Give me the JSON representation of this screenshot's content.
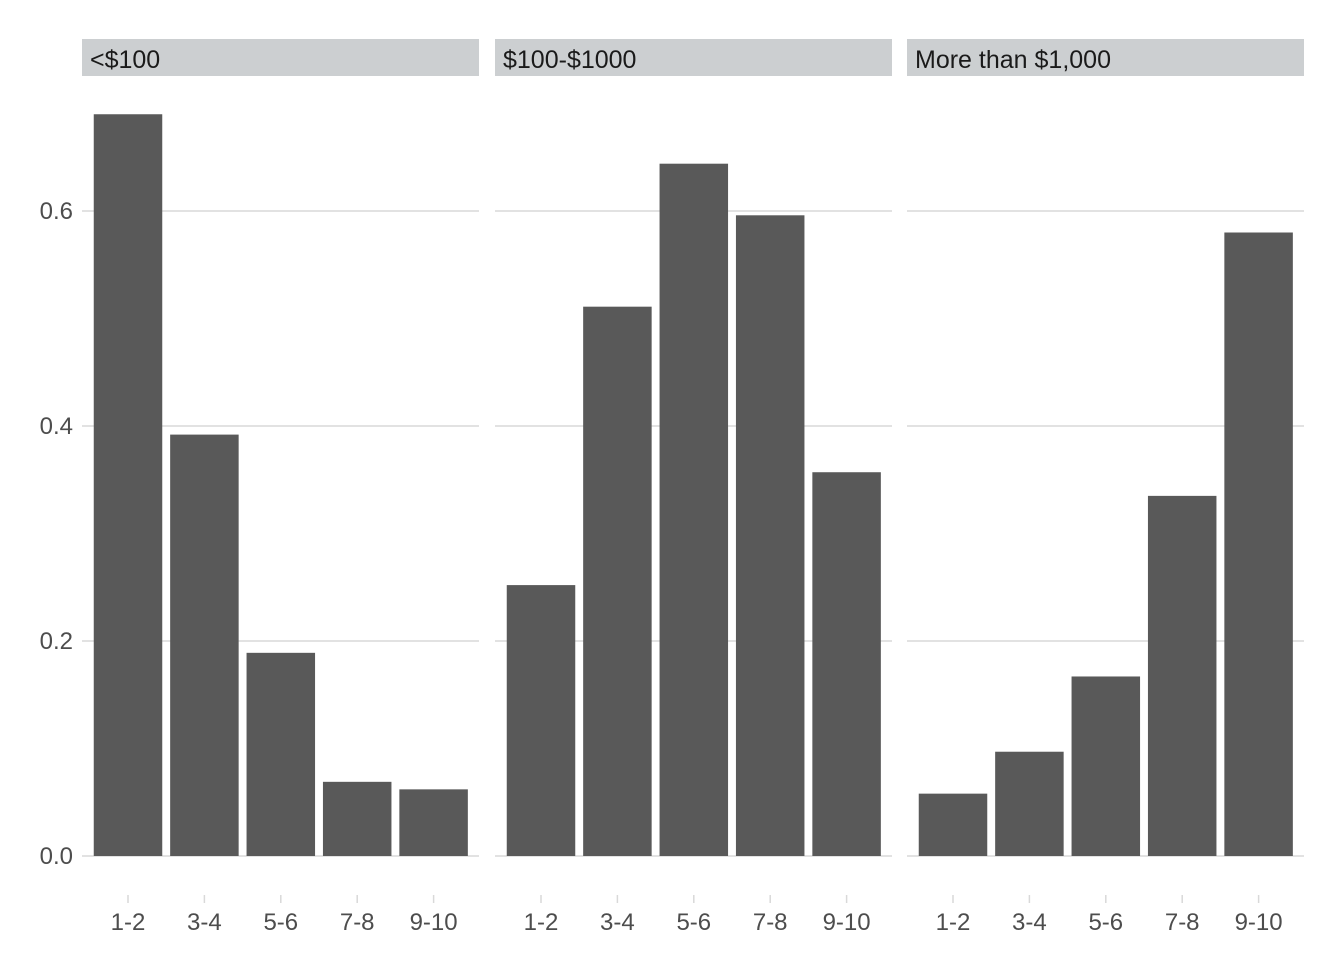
{
  "chart_data": {
    "type": "bar",
    "layout": "faceted",
    "categories": [
      "1-2",
      "3-4",
      "5-6",
      "7-8",
      "9-10"
    ],
    "ylim": [
      0,
      0.7
    ],
    "yticks": [
      0.0,
      0.2,
      0.4,
      0.6
    ],
    "ytick_labels": [
      "0.0",
      "0.2",
      "0.4",
      "0.6"
    ],
    "grid": true,
    "bar_color": "#595959",
    "strip_color": "#cccfd1",
    "grid_color": "#e2e2e2",
    "panels": [
      {
        "label": "<$100",
        "values": [
          0.69,
          0.392,
          0.189,
          0.069,
          0.062
        ]
      },
      {
        "label": "$100-$1000",
        "values": [
          0.252,
          0.511,
          0.644,
          0.596,
          0.357
        ]
      },
      {
        "label": "More than $1,000",
        "values": [
          0.058,
          0.097,
          0.167,
          0.335,
          0.58
        ]
      }
    ]
  }
}
